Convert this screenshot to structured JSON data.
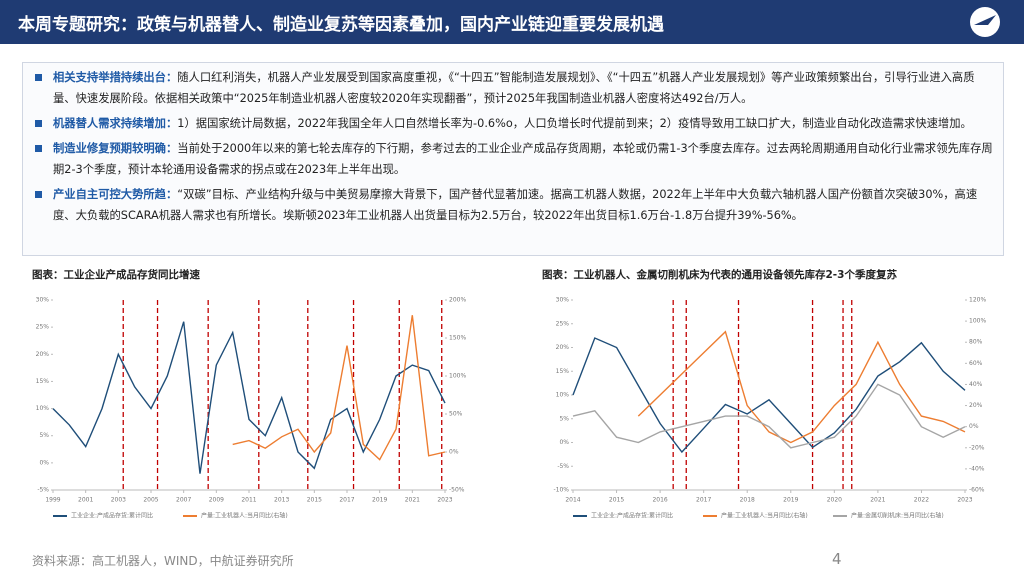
{
  "header": {
    "title": "本周专题研究：政策与机器替人、制造业复苏等因素叠加，国内产业链迎重要发展机遇"
  },
  "bullets": [
    {
      "heading": "相关支持举措持续出台：",
      "text": "随人口红利消失，机器人产业发展受到国家高度重视，《“十四五”智能制造发展规划》、《“十四五”机器人产业发展规划》等产业政策频繁出台，引导行业进入高质量、快速发展阶段。依据相关政策中“2025年制造业机器人密度较2020年实现翻番”，预计2025年我国制造业机器人密度将达492台/万人。"
    },
    {
      "heading": "机器替人需求持续增加：",
      "text": "1）据国家统计局数据，2022年我国全年人口自然增长率为-0.6%o，人口负增长时代提前到来；2）疫情导致用工缺口扩大，制造业自动化改造需求快速增加。"
    },
    {
      "heading": "制造业修复预期较明确：",
      "text": "当前处于2000年以来的第七轮去库存的下行期，参考过去的工业企业产成品存货周期，本轮或仍需1-3个季度去库存。过去两轮周期通用自动化行业需求领先库存周期2-3个季度，预计本轮通用设备需求的拐点或在2023年上半年出现。"
    },
    {
      "heading": "产业自主可控大势所趋：",
      "text": "“双碳”目标、产业结构升级与中美贸易摩擦大背景下，国产替代显著加速。据高工机器人数据，2022年上半年中大负载六轴机器人国产份额首次突破30%，高速度、大负载的SCARA机器人需求也有所增长。埃斯顿2023年工业机器人出货量目标为2.5万台，较2022年出货目标1.6万台-1.8万台提升39%-56%。"
    }
  ],
  "chart_data": [
    {
      "type": "line",
      "title": "图表：工业企业产成品存货同比增速",
      "x": [
        1999,
        2000,
        2001,
        2002,
        2003,
        2004,
        2005,
        2006,
        2007,
        2008,
        2009,
        2010,
        2011,
        2012,
        2013,
        2014,
        2015,
        2016,
        2017,
        2018,
        2019,
        2020,
        2021,
        2022,
        2023
      ],
      "series": [
        {
          "name": "工业企业:产成品存货:累计同比",
          "color": "#1f4e79",
          "values": [
            10,
            7,
            3,
            10,
            20,
            14,
            10,
            16,
            26,
            -2,
            18,
            24,
            8,
            5,
            12,
            2,
            -1,
            8,
            10,
            2,
            8,
            16,
            18,
            17,
            11
          ]
        },
        {
          "name": "产量:工业机器人:当月同比(右轴)",
          "color": "#ed7d31",
          "axis": "y2",
          "values": [
            null,
            null,
            null,
            null,
            null,
            null,
            null,
            null,
            null,
            null,
            null,
            10,
            15,
            5,
            20,
            30,
            0,
            25,
            140,
            10,
            -10,
            30,
            180,
            -5,
            0
          ]
        }
      ],
      "xlim": [
        1999,
        2023
      ],
      "xticks": [
        1999,
        2001,
        2003,
        2005,
        2007,
        2009,
        2011,
        2013,
        2015,
        2017,
        2019,
        2021,
        2023
      ],
      "ylim": [
        -5,
        30
      ],
      "yticks": [
        {
          "value": -5,
          "label": "-5%"
        },
        {
          "value": 0,
          "label": "0%"
        },
        {
          "value": 5,
          "label": "5%"
        },
        {
          "value": 10,
          "label": "10%"
        },
        {
          "value": 15,
          "label": "15%"
        },
        {
          "value": 20,
          "label": "20%"
        },
        {
          "value": 25,
          "label": "25%"
        },
        {
          "value": 30,
          "label": "30%"
        }
      ],
      "y2lim": [
        -50,
        200
      ],
      "y2ticks": [
        {
          "value": -50,
          "label": "-50%"
        },
        {
          "value": 0,
          "label": "0%"
        },
        {
          "value": 50,
          "label": "50%"
        },
        {
          "value": 100,
          "label": "100%"
        },
        {
          "value": 150,
          "label": "150%"
        },
        {
          "value": 200,
          "label": "200%"
        }
      ],
      "markers": [
        2003.3,
        2005.4,
        2008.5,
        2011.6,
        2014.6,
        2017.4,
        2020.2,
        2022.8
      ],
      "marker_color": "#c00000"
    },
    {
      "type": "line",
      "title": "图表：工业机器人、金属切削机床为代表的通用设备领先库存2-3个季度复苏",
      "x": [
        2014,
        2014.5,
        2015,
        2015.5,
        2016,
        2016.5,
        2017,
        2017.5,
        2018,
        2018.5,
        2019,
        2019.5,
        2020,
        2020.5,
        2021,
        2021.5,
        2022,
        2022.5,
        2023
      ],
      "series": [
        {
          "name": "工业企业:产成品存货:累计同比",
          "color": "#1f4e79",
          "values": [
            10,
            22,
            20,
            12,
            4,
            -2,
            3,
            8,
            6,
            9,
            4,
            -1,
            2,
            7,
            14,
            17,
            21,
            15,
            11
          ]
        },
        {
          "name": "产量:工业机器人:当月同比(右轴)",
          "color": "#ed7d31",
          "axis": "y2",
          "values": [
            null,
            null,
            null,
            10,
            30,
            50,
            70,
            90,
            20,
            -5,
            -15,
            -5,
            20,
            40,
            80,
            40,
            10,
            5,
            -5
          ]
        },
        {
          "name": "产量:金属切削机床:当月同比(右轴)",
          "color": "#a5a5a5",
          "axis": "y2",
          "values": [
            10,
            15,
            -10,
            -15,
            -5,
            0,
            5,
            10,
            10,
            0,
            -20,
            -15,
            -10,
            10,
            40,
            30,
            0,
            -10,
            0
          ]
        }
      ],
      "xlim": [
        2014,
        2023
      ],
      "xticks": [
        2014,
        2015,
        2016,
        2017,
        2018,
        2019,
        2020,
        2021,
        2022,
        2023
      ],
      "ylim": [
        -10,
        30
      ],
      "yticks": [
        {
          "value": -10,
          "label": "-10%"
        },
        {
          "value": -5,
          "label": "-5%"
        },
        {
          "value": 0,
          "label": "0%"
        },
        {
          "value": 5,
          "label": "5%"
        },
        {
          "value": 10,
          "label": "10%"
        },
        {
          "value": 15,
          "label": "15%"
        },
        {
          "value": 20,
          "label": "20%"
        },
        {
          "value": 25,
          "label": "25%"
        },
        {
          "value": 30,
          "label": "30%"
        }
      ],
      "y2lim": [
        -60,
        120
      ],
      "y2ticks": [
        {
          "value": -60,
          "label": "-60%"
        },
        {
          "value": -40,
          "label": "-40%"
        },
        {
          "value": -20,
          "label": "-20%"
        },
        {
          "value": 0,
          "label": "0%"
        },
        {
          "value": 20,
          "label": "20%"
        },
        {
          "value": 40,
          "label": "40%"
        },
        {
          "value": 60,
          "label": "60%"
        },
        {
          "value": 80,
          "label": "80%"
        },
        {
          "value": 100,
          "label": "100%"
        },
        {
          "value": 120,
          "label": "120%"
        }
      ],
      "markers": [
        2016.3,
        2016.6,
        2017.8,
        2019.5,
        2020.2,
        2020.4
      ],
      "marker_color": "#c00000"
    }
  ],
  "footer": {
    "source": "资料来源：高工机器人，WIND，中航证券研究所",
    "page": "4"
  }
}
